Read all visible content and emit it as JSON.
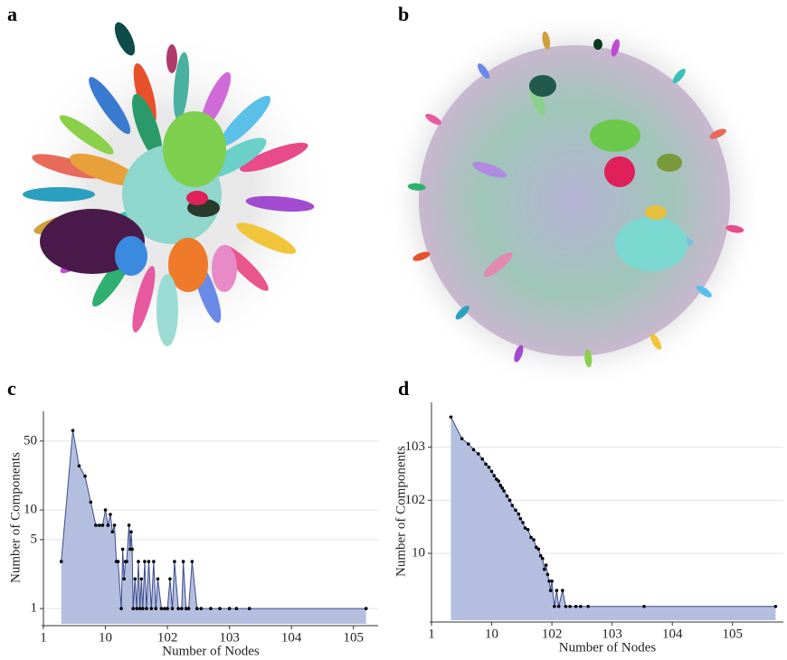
{
  "images": [
    {
      "label": "a"
    },
    {
      "label": "b"
    }
  ],
  "chart_data": [
    {
      "type": "area",
      "label": "c",
      "xlabel": "Number of Nodes",
      "ylabel": "Number of Components",
      "xscale": "log",
      "yscale": "log",
      "grid": true,
      "color": "#3d4c8c",
      "fill_color": "#b4bfe0",
      "xlim": [
        1,
        250000
      ],
      "ylim": [
        0.7,
        100
      ],
      "xticks": [
        1,
        10,
        {
          "value": 100,
          "label": "102"
        },
        {
          "value": 1000,
          "label": "103"
        },
        {
          "value": 10000,
          "label": "104"
        },
        {
          "value": 100000,
          "label": "105"
        }
      ],
      "yticks": [
        1,
        5,
        10,
        50
      ],
      "x": [
        1.94,
        2.98,
        3.76,
        4.7,
        5.8,
        7,
        8,
        9,
        10,
        11,
        12,
        13,
        14,
        15,
        16,
        18,
        19,
        20,
        21,
        22,
        24,
        25,
        26,
        27,
        28,
        30,
        32,
        34,
        36,
        38,
        40,
        43,
        46,
        50,
        55,
        60,
        65,
        70,
        80,
        90,
        100,
        110,
        120,
        130,
        150,
        170,
        180,
        200,
        220,
        250,
        300,
        350,
        500,
        700,
        1000,
        1300,
        2100,
        160000
      ],
      "values": [
        3,
        64,
        28,
        22,
        12,
        7,
        7,
        7,
        10,
        7,
        9,
        6,
        7,
        3,
        3,
        1,
        4,
        2,
        3,
        3,
        7,
        4,
        6,
        4,
        1,
        2,
        1,
        3,
        1,
        2,
        1,
        3,
        1,
        3,
        1,
        3,
        1,
        2,
        1,
        1,
        1,
        2,
        1,
        3,
        1,
        1,
        3,
        1,
        1,
        3,
        1,
        1,
        1,
        1,
        1,
        1,
        1,
        1
      ]
    },
    {
      "type": "area",
      "label": "d",
      "xlabel": "Number of Nodes",
      "ylabel": "Number of Components",
      "xscale": "log",
      "yscale": "log",
      "grid": true,
      "color": "#3d4c8c",
      "fill_color": "#b4bfe0",
      "xlim": [
        1,
        700000
      ],
      "ylim": [
        0.55,
        7000
      ],
      "xticks": [
        1,
        10,
        {
          "value": 100,
          "label": "102"
        },
        {
          "value": 1000,
          "label": "103"
        },
        {
          "value": 10000,
          "label": "104"
        },
        {
          "value": 100000,
          "label": "105"
        }
      ],
      "yticks": [
        10,
        {
          "value": 100,
          "label": "102"
        },
        {
          "value": 1000,
          "label": "103"
        }
      ],
      "x": [
        2.1,
        3.2,
        4.1,
        5,
        6,
        7,
        8,
        9,
        10,
        11,
        12,
        13,
        14,
        15,
        16,
        18,
        20,
        22,
        25,
        28,
        30,
        33,
        36,
        40,
        45,
        50,
        55,
        60,
        65,
        70,
        75,
        80,
        85,
        90,
        95,
        100,
        110,
        120,
        130,
        150,
        170,
        200,
        250,
        300,
        400,
        3400,
        520000
      ],
      "values": [
        3700,
        1450,
        1150,
        900,
        750,
        600,
        480,
        420,
        350,
        290,
        250,
        230,
        190,
        170,
        150,
        120,
        100,
        80,
        65,
        55,
        45,
        38,
        30,
        28,
        20,
        18,
        13,
        12,
        9,
        8,
        5,
        6,
        4,
        3,
        2,
        3,
        1,
        2,
        1,
        2,
        1,
        1,
        1,
        1,
        1,
        1,
        1
      ]
    }
  ]
}
